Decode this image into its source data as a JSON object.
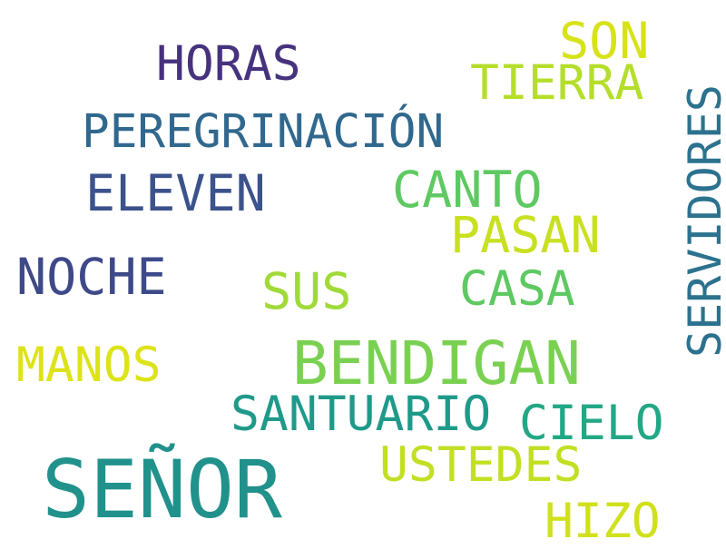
{
  "words": [
    {
      "id": "senor",
      "text": "SEÑOR",
      "color": "#21918c"
    },
    {
      "id": "bendigan",
      "text": "BENDIGAN",
      "color": "#7ad151"
    },
    {
      "id": "peregrinacion",
      "text": "PEREGRINACIÓN",
      "color": "#31688e"
    },
    {
      "id": "servidores",
      "text": "SERVIDORES",
      "color": "#2c728e"
    },
    {
      "id": "santuario",
      "text": "SANTUARIO",
      "color": "#1f9a8a"
    },
    {
      "id": "horas",
      "text": "HORAS",
      "color": "#46327e"
    },
    {
      "id": "eleven",
      "text": "ELEVEN",
      "color": "#3b528b"
    },
    {
      "id": "noche",
      "text": "NOCHE",
      "color": "#3e4989"
    },
    {
      "id": "tierra",
      "text": "TIERRA",
      "color": "#b5de2b"
    },
    {
      "id": "son",
      "text": "SON",
      "color": "#d8e219"
    },
    {
      "id": "canto",
      "text": "CANTO",
      "color": "#5ec962"
    },
    {
      "id": "pasan",
      "text": "PASAN",
      "color": "#c8e020"
    },
    {
      "id": "casa",
      "text": "CASA",
      "color": "#5ec962"
    },
    {
      "id": "sus",
      "text": "SUS",
      "color": "#a0da39"
    },
    {
      "id": "manos",
      "text": "MANOS",
      "color": "#dde318"
    },
    {
      "id": "cielo",
      "text": "CIELO",
      "color": "#22a884"
    },
    {
      "id": "ustedes",
      "text": "USTEDES",
      "color": "#c2df23"
    },
    {
      "id": "hizo",
      "text": "HIZO",
      "color": "#d0e11c"
    }
  ]
}
